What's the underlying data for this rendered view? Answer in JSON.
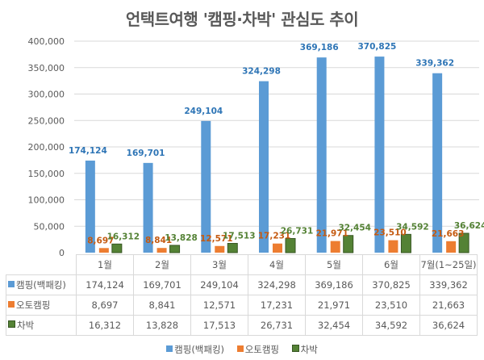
{
  "chart_data": {
    "type": "bar",
    "title": "언택트여행 '캠핑·차박' 관심도 추이",
    "categories": [
      "1월",
      "2월",
      "3월",
      "4월",
      "5월",
      "6월",
      "7월(1~25일)"
    ],
    "series": [
      {
        "name": "캠핑(백패킹)",
        "color": "#5b9bd5",
        "label_color": "#2e75b6",
        "values": [
          174124,
          169701,
          249104,
          324298,
          369186,
          370825,
          339362
        ],
        "labels": [
          "174,124",
          "169,701",
          "249,104",
          "324,298",
          "369,186",
          "370,825",
          "339,362"
        ]
      },
      {
        "name": "오토캠핑",
        "color": "#ed7d31",
        "label_color": "#c55a11",
        "values": [
          8697,
          8841,
          12571,
          17231,
          21971,
          23510,
          21663
        ],
        "labels": [
          "8,697",
          "8,841",
          "12,571",
          "17,231",
          "21,971",
          "23,510",
          "21,663"
        ]
      },
      {
        "name": "차박",
        "color": "#548235",
        "label_color": "#548235",
        "values": [
          16312,
          13828,
          17513,
          26731,
          32454,
          34592,
          36624
        ],
        "labels": [
          "16,312",
          "13,828",
          "17,513",
          "26,731",
          "32,454",
          "34,592",
          "36,624"
        ]
      }
    ],
    "ylim": [
      0,
      400000
    ],
    "yticks": [
      0,
      50000,
      100000,
      150000,
      200000,
      250000,
      300000,
      350000,
      400000
    ],
    "ytick_labels": [
      "0",
      "50,000",
      "100,000",
      "150,000",
      "200,000",
      "250,000",
      "300,000",
      "350,000",
      "400,000"
    ],
    "grid": true,
    "legend": "bottom",
    "data_table": true,
    "xlabel": "",
    "ylabel": ""
  }
}
